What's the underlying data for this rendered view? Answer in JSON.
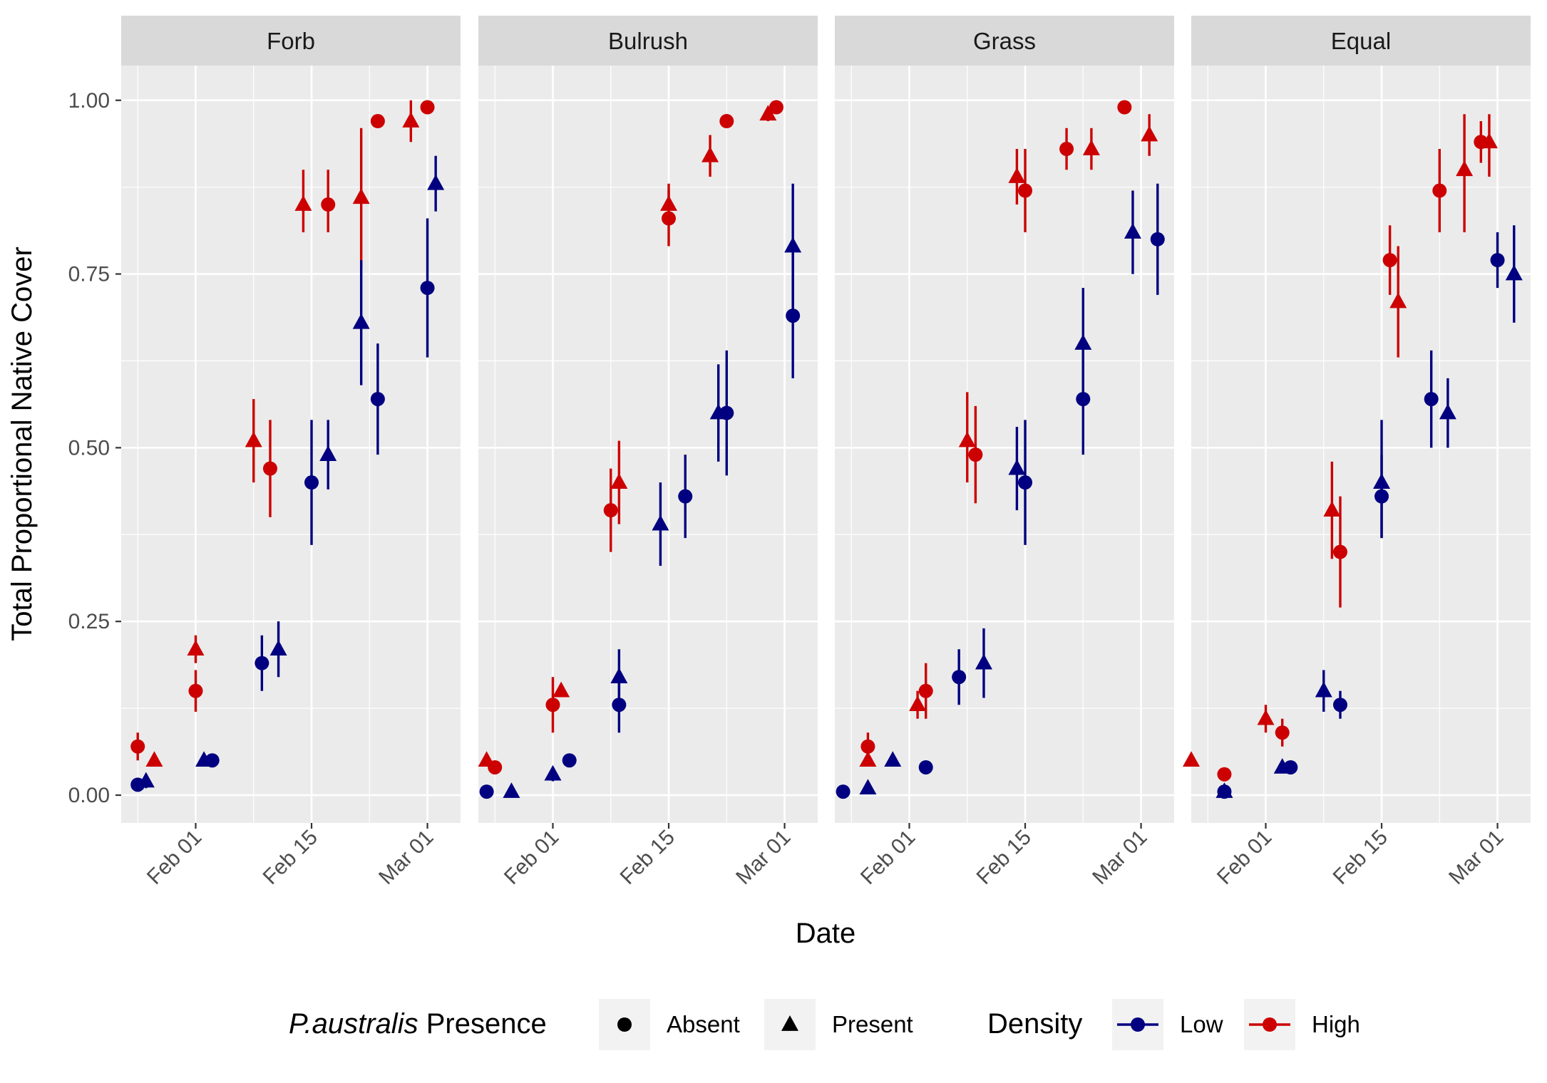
{
  "chart_data": {
    "type": "scatter",
    "xlabel": "Date",
    "ylabel": "Total Proportional Native Cover",
    "ylim": [
      -0.04,
      1.05
    ],
    "xlim": [
      "2023-01-23",
      "2023-03-05"
    ],
    "y_ticks": [
      0,
      0.25,
      0.5,
      0.75,
      1
    ],
    "y_tick_labels": [
      "0.00",
      "0.25",
      "0.50",
      "0.75",
      "1.00"
    ],
    "x_ticks": [
      "2023-02-01",
      "2023-02-15",
      "2023-03-01"
    ],
    "x_tick_labels": [
      "Feb 01",
      "Feb 15",
      "Mar 01"
    ],
    "grid": true,
    "legend": {
      "position": "bottom",
      "shape_title_italic": "P.australis",
      "shape_title_rest": " Presence",
      "shape_items": [
        {
          "label": "Absent",
          "shape": "circle"
        },
        {
          "label": "Present",
          "shape": "triangle"
        }
      ],
      "color_title": "Density",
      "color_items": [
        {
          "label": "Low",
          "color": "#000080"
        },
        {
          "label": "High",
          "color": "#cc0000"
        }
      ]
    },
    "colors": {
      "Low": "#000080",
      "High": "#cc0000"
    },
    "facets": [
      {
        "name": "Forb",
        "points": [
          {
            "date": "2023-01-25",
            "y": 0.07,
            "lo": 0.05,
            "hi": 0.09,
            "shape": "Absent",
            "density": "High"
          },
          {
            "date": "2023-01-27",
            "y": 0.05,
            "lo": 0.05,
            "hi": 0.05,
            "shape": "Present",
            "density": "High"
          },
          {
            "date": "2023-02-01",
            "y": 0.21,
            "lo": 0.19,
            "hi": 0.23,
            "shape": "Present",
            "density": "High"
          },
          {
            "date": "2023-02-01",
            "y": 0.15,
            "lo": 0.12,
            "hi": 0.18,
            "shape": "Absent",
            "density": "High"
          },
          {
            "date": "2023-02-08",
            "y": 0.51,
            "lo": 0.45,
            "hi": 0.57,
            "shape": "Present",
            "density": "High"
          },
          {
            "date": "2023-02-10",
            "y": 0.47,
            "lo": 0.4,
            "hi": 0.54,
            "shape": "Absent",
            "density": "High"
          },
          {
            "date": "2023-02-14",
            "y": 0.85,
            "lo": 0.81,
            "hi": 0.9,
            "shape": "Present",
            "density": "High"
          },
          {
            "date": "2023-02-17",
            "y": 0.85,
            "lo": 0.81,
            "hi": 0.9,
            "shape": "Absent",
            "density": "High"
          },
          {
            "date": "2023-02-21",
            "y": 0.86,
            "lo": 0.76,
            "hi": 0.96,
            "shape": "Present",
            "density": "High"
          },
          {
            "date": "2023-02-23",
            "y": 0.97,
            "lo": 0.97,
            "hi": 0.97,
            "shape": "Absent",
            "density": "High"
          },
          {
            "date": "2023-02-27",
            "y": 0.97,
            "lo": 0.94,
            "hi": 1.0,
            "shape": "Present",
            "density": "High"
          },
          {
            "date": "2023-03-01",
            "y": 0.99,
            "lo": 0.99,
            "hi": 0.99,
            "shape": "Absent",
            "density": "High"
          },
          {
            "date": "2023-01-25",
            "y": 0.015,
            "lo": 0.015,
            "hi": 0.015,
            "shape": "Absent",
            "density": "Low"
          },
          {
            "date": "2023-01-26",
            "y": 0.02,
            "lo": 0.01,
            "hi": 0.03,
            "shape": "Present",
            "density": "Low"
          },
          {
            "date": "2023-02-02",
            "y": 0.05,
            "lo": 0.05,
            "hi": 0.05,
            "shape": "Present",
            "density": "Low"
          },
          {
            "date": "2023-02-03",
            "y": 0.05,
            "lo": 0.05,
            "hi": 0.05,
            "shape": "Absent",
            "density": "Low"
          },
          {
            "date": "2023-02-09",
            "y": 0.19,
            "lo": 0.15,
            "hi": 0.23,
            "shape": "Absent",
            "density": "Low"
          },
          {
            "date": "2023-02-11",
            "y": 0.21,
            "lo": 0.17,
            "hi": 0.25,
            "shape": "Present",
            "density": "Low"
          },
          {
            "date": "2023-02-15",
            "y": 0.45,
            "lo": 0.36,
            "hi": 0.54,
            "shape": "Absent",
            "density": "Low"
          },
          {
            "date": "2023-02-17",
            "y": 0.49,
            "lo": 0.44,
            "hi": 0.54,
            "shape": "Present",
            "density": "Low"
          },
          {
            "date": "2023-02-21",
            "y": 0.68,
            "lo": 0.59,
            "hi": 0.77,
            "shape": "Present",
            "density": "Low"
          },
          {
            "date": "2023-02-23",
            "y": 0.57,
            "lo": 0.49,
            "hi": 0.65,
            "shape": "Absent",
            "density": "Low"
          },
          {
            "date": "2023-03-01",
            "y": 0.73,
            "lo": 0.63,
            "hi": 0.83,
            "shape": "Absent",
            "density": "Low"
          },
          {
            "date": "2023-03-02",
            "y": 0.88,
            "lo": 0.84,
            "hi": 0.92,
            "shape": "Present",
            "density": "Low"
          }
        ]
      },
      {
        "name": "Bulrush",
        "points": [
          {
            "date": "2023-01-24",
            "y": 0.05,
            "lo": 0.05,
            "hi": 0.05,
            "shape": "Present",
            "density": "High"
          },
          {
            "date": "2023-01-25",
            "y": 0.04,
            "lo": 0.04,
            "hi": 0.04,
            "shape": "Absent",
            "density": "High"
          },
          {
            "date": "2023-02-01",
            "y": 0.13,
            "lo": 0.09,
            "hi": 0.17,
            "shape": "Absent",
            "density": "High"
          },
          {
            "date": "2023-02-02",
            "y": 0.15,
            "lo": 0.15,
            "hi": 0.15,
            "shape": "Present",
            "density": "High"
          },
          {
            "date": "2023-02-08",
            "y": 0.41,
            "lo": 0.35,
            "hi": 0.47,
            "shape": "Absent",
            "density": "High"
          },
          {
            "date": "2023-02-09",
            "y": 0.45,
            "lo": 0.39,
            "hi": 0.51,
            "shape": "Present",
            "density": "High"
          },
          {
            "date": "2023-02-15",
            "y": 0.85,
            "lo": 0.82,
            "hi": 0.88,
            "shape": "Present",
            "density": "High"
          },
          {
            "date": "2023-02-15",
            "y": 0.83,
            "lo": 0.79,
            "hi": 0.87,
            "shape": "Absent",
            "density": "High"
          },
          {
            "date": "2023-02-20",
            "y": 0.92,
            "lo": 0.89,
            "hi": 0.95,
            "shape": "Present",
            "density": "High"
          },
          {
            "date": "2023-02-22",
            "y": 0.97,
            "lo": 0.97,
            "hi": 0.97,
            "shape": "Absent",
            "density": "High"
          },
          {
            "date": "2023-02-27",
            "y": 0.98,
            "lo": 0.97,
            "hi": 0.99,
            "shape": "Present",
            "density": "High"
          },
          {
            "date": "2023-02-28",
            "y": 0.99,
            "lo": 0.99,
            "hi": 0.99,
            "shape": "Absent",
            "density": "High"
          },
          {
            "date": "2023-01-24",
            "y": 0.005,
            "lo": 0.005,
            "hi": 0.005,
            "shape": "Absent",
            "density": "Low"
          },
          {
            "date": "2023-01-27",
            "y": 0.005,
            "lo": 0.005,
            "hi": 0.005,
            "shape": "Present",
            "density": "Low"
          },
          {
            "date": "2023-02-01",
            "y": 0.03,
            "lo": 0.02,
            "hi": 0.04,
            "shape": "Present",
            "density": "Low"
          },
          {
            "date": "2023-02-03",
            "y": 0.05,
            "lo": 0.05,
            "hi": 0.05,
            "shape": "Absent",
            "density": "Low"
          },
          {
            "date": "2023-02-09",
            "y": 0.17,
            "lo": 0.14,
            "hi": 0.21,
            "shape": "Present",
            "density": "Low"
          },
          {
            "date": "2023-02-09",
            "y": 0.13,
            "lo": 0.09,
            "hi": 0.17,
            "shape": "Absent",
            "density": "Low"
          },
          {
            "date": "2023-02-14",
            "y": 0.39,
            "lo": 0.33,
            "hi": 0.45,
            "shape": "Present",
            "density": "Low"
          },
          {
            "date": "2023-02-17",
            "y": 0.43,
            "lo": 0.37,
            "hi": 0.49,
            "shape": "Absent",
            "density": "Low"
          },
          {
            "date": "2023-02-21",
            "y": 0.55,
            "lo": 0.48,
            "hi": 0.62,
            "shape": "Present",
            "density": "Low"
          },
          {
            "date": "2023-02-22",
            "y": 0.55,
            "lo": 0.46,
            "hi": 0.64,
            "shape": "Absent",
            "density": "Low"
          },
          {
            "date": "2023-03-02",
            "y": 0.69,
            "lo": 0.6,
            "hi": 0.78,
            "shape": "Absent",
            "density": "Low"
          },
          {
            "date": "2023-03-02",
            "y": 0.79,
            "lo": 0.7,
            "hi": 0.88,
            "shape": "Present",
            "density": "Low"
          }
        ]
      },
      {
        "name": "Grass",
        "points": [
          {
            "date": "2023-01-27",
            "y": 0.05,
            "lo": 0.05,
            "hi": 0.05,
            "shape": "Present",
            "density": "High"
          },
          {
            "date": "2023-01-27",
            "y": 0.07,
            "lo": 0.05,
            "hi": 0.09,
            "shape": "Absent",
            "density": "High"
          },
          {
            "date": "2023-02-02",
            "y": 0.13,
            "lo": 0.11,
            "hi": 0.15,
            "shape": "Present",
            "density": "High"
          },
          {
            "date": "2023-02-03",
            "y": 0.15,
            "lo": 0.11,
            "hi": 0.19,
            "shape": "Absent",
            "density": "High"
          },
          {
            "date": "2023-02-08",
            "y": 0.51,
            "lo": 0.45,
            "hi": 0.58,
            "shape": "Present",
            "density": "High"
          },
          {
            "date": "2023-02-09",
            "y": 0.49,
            "lo": 0.42,
            "hi": 0.56,
            "shape": "Absent",
            "density": "High"
          },
          {
            "date": "2023-02-14",
            "y": 0.89,
            "lo": 0.85,
            "hi": 0.93,
            "shape": "Present",
            "density": "High"
          },
          {
            "date": "2023-02-15",
            "y": 0.87,
            "lo": 0.81,
            "hi": 0.93,
            "shape": "Absent",
            "density": "High"
          },
          {
            "date": "2023-02-20",
            "y": 0.93,
            "lo": 0.9,
            "hi": 0.96,
            "shape": "Absent",
            "density": "High"
          },
          {
            "date": "2023-02-23",
            "y": 0.93,
            "lo": 0.9,
            "hi": 0.96,
            "shape": "Present",
            "density": "High"
          },
          {
            "date": "2023-02-27",
            "y": 0.99,
            "lo": 0.99,
            "hi": 0.99,
            "shape": "Absent",
            "density": "High"
          },
          {
            "date": "2023-03-02",
            "y": 0.95,
            "lo": 0.92,
            "hi": 0.98,
            "shape": "Present",
            "density": "High"
          },
          {
            "date": "2023-01-24",
            "y": 0.005,
            "lo": 0.005,
            "hi": 0.005,
            "shape": "Absent",
            "density": "Low"
          },
          {
            "date": "2023-01-27",
            "y": 0.01,
            "lo": 0.01,
            "hi": 0.01,
            "shape": "Present",
            "density": "Low"
          },
          {
            "date": "2023-01-30",
            "y": 0.05,
            "lo": 0.05,
            "hi": 0.05,
            "shape": "Present",
            "density": "Low"
          },
          {
            "date": "2023-02-03",
            "y": 0.04,
            "lo": 0.04,
            "hi": 0.04,
            "shape": "Absent",
            "density": "Low"
          },
          {
            "date": "2023-02-07",
            "y": 0.17,
            "lo": 0.13,
            "hi": 0.21,
            "shape": "Absent",
            "density": "Low"
          },
          {
            "date": "2023-02-10",
            "y": 0.19,
            "lo": 0.14,
            "hi": 0.24,
            "shape": "Present",
            "density": "Low"
          },
          {
            "date": "2023-02-14",
            "y": 0.47,
            "lo": 0.41,
            "hi": 0.53,
            "shape": "Present",
            "density": "Low"
          },
          {
            "date": "2023-02-15",
            "y": 0.45,
            "lo": 0.36,
            "hi": 0.54,
            "shape": "Absent",
            "density": "Low"
          },
          {
            "date": "2023-02-22",
            "y": 0.65,
            "lo": 0.57,
            "hi": 0.73,
            "shape": "Present",
            "density": "Low"
          },
          {
            "date": "2023-02-22",
            "y": 0.57,
            "lo": 0.49,
            "hi": 0.65,
            "shape": "Absent",
            "density": "Low"
          },
          {
            "date": "2023-02-28",
            "y": 0.81,
            "lo": 0.75,
            "hi": 0.87,
            "shape": "Present",
            "density": "Low"
          },
          {
            "date": "2023-03-03",
            "y": 0.8,
            "lo": 0.72,
            "hi": 0.88,
            "shape": "Absent",
            "density": "Low"
          }
        ]
      },
      {
        "name": "Equal",
        "points": [
          {
            "date": "2023-01-23",
            "y": 0.05,
            "lo": 0.05,
            "hi": 0.05,
            "shape": "Present",
            "density": "High"
          },
          {
            "date": "2023-01-27",
            "y": 0.03,
            "lo": 0.03,
            "hi": 0.03,
            "shape": "Absent",
            "density": "High"
          },
          {
            "date": "2023-02-01",
            "y": 0.11,
            "lo": 0.09,
            "hi": 0.13,
            "shape": "Present",
            "density": "High"
          },
          {
            "date": "2023-02-03",
            "y": 0.09,
            "lo": 0.07,
            "hi": 0.11,
            "shape": "Absent",
            "density": "High"
          },
          {
            "date": "2023-02-09",
            "y": 0.41,
            "lo": 0.34,
            "hi": 0.48,
            "shape": "Present",
            "density": "High"
          },
          {
            "date": "2023-02-10",
            "y": 0.35,
            "lo": 0.27,
            "hi": 0.43,
            "shape": "Absent",
            "density": "High"
          },
          {
            "date": "2023-02-16",
            "y": 0.77,
            "lo": 0.72,
            "hi": 0.82,
            "shape": "Absent",
            "density": "High"
          },
          {
            "date": "2023-02-17",
            "y": 0.71,
            "lo": 0.63,
            "hi": 0.79,
            "shape": "Present",
            "density": "High"
          },
          {
            "date": "2023-02-22",
            "y": 0.87,
            "lo": 0.81,
            "hi": 0.93,
            "shape": "Absent",
            "density": "High"
          },
          {
            "date": "2023-02-25",
            "y": 0.9,
            "lo": 0.81,
            "hi": 0.98,
            "shape": "Present",
            "density": "High"
          },
          {
            "date": "2023-02-27",
            "y": 0.94,
            "lo": 0.91,
            "hi": 0.97,
            "shape": "Absent",
            "density": "High"
          },
          {
            "date": "2023-02-28",
            "y": 0.94,
            "lo": 0.89,
            "hi": 0.98,
            "shape": "Present",
            "density": "High"
          },
          {
            "date": "2023-01-27",
            "y": 0.005,
            "lo": 0.005,
            "hi": 0.005,
            "shape": "Absent",
            "density": "Low"
          },
          {
            "date": "2023-01-27",
            "y": 0.005,
            "lo": 0.005,
            "hi": 0.005,
            "shape": "Present",
            "density": "Low"
          },
          {
            "date": "2023-02-03",
            "y": 0.04,
            "lo": 0.04,
            "hi": 0.04,
            "shape": "Present",
            "density": "Low"
          },
          {
            "date": "2023-02-04",
            "y": 0.04,
            "lo": 0.04,
            "hi": 0.04,
            "shape": "Absent",
            "density": "Low"
          },
          {
            "date": "2023-02-08",
            "y": 0.15,
            "lo": 0.12,
            "hi": 0.18,
            "shape": "Present",
            "density": "Low"
          },
          {
            "date": "2023-02-10",
            "y": 0.13,
            "lo": 0.11,
            "hi": 0.15,
            "shape": "Absent",
            "density": "Low"
          },
          {
            "date": "2023-02-15",
            "y": 0.45,
            "lo": 0.37,
            "hi": 0.54,
            "shape": "Present",
            "density": "Low"
          },
          {
            "date": "2023-02-15",
            "y": 0.43,
            "lo": 0.37,
            "hi": 0.49,
            "shape": "Absent",
            "density": "Low"
          },
          {
            "date": "2023-02-21",
            "y": 0.57,
            "lo": 0.5,
            "hi": 0.64,
            "shape": "Absent",
            "density": "Low"
          },
          {
            "date": "2023-02-23",
            "y": 0.55,
            "lo": 0.5,
            "hi": 0.6,
            "shape": "Present",
            "density": "Low"
          },
          {
            "date": "2023-03-01",
            "y": 0.77,
            "lo": 0.73,
            "hi": 0.81,
            "shape": "Absent",
            "density": "Low"
          },
          {
            "date": "2023-03-03",
            "y": 0.75,
            "lo": 0.68,
            "hi": 0.82,
            "shape": "Present",
            "density": "Low"
          }
        ]
      }
    ]
  }
}
